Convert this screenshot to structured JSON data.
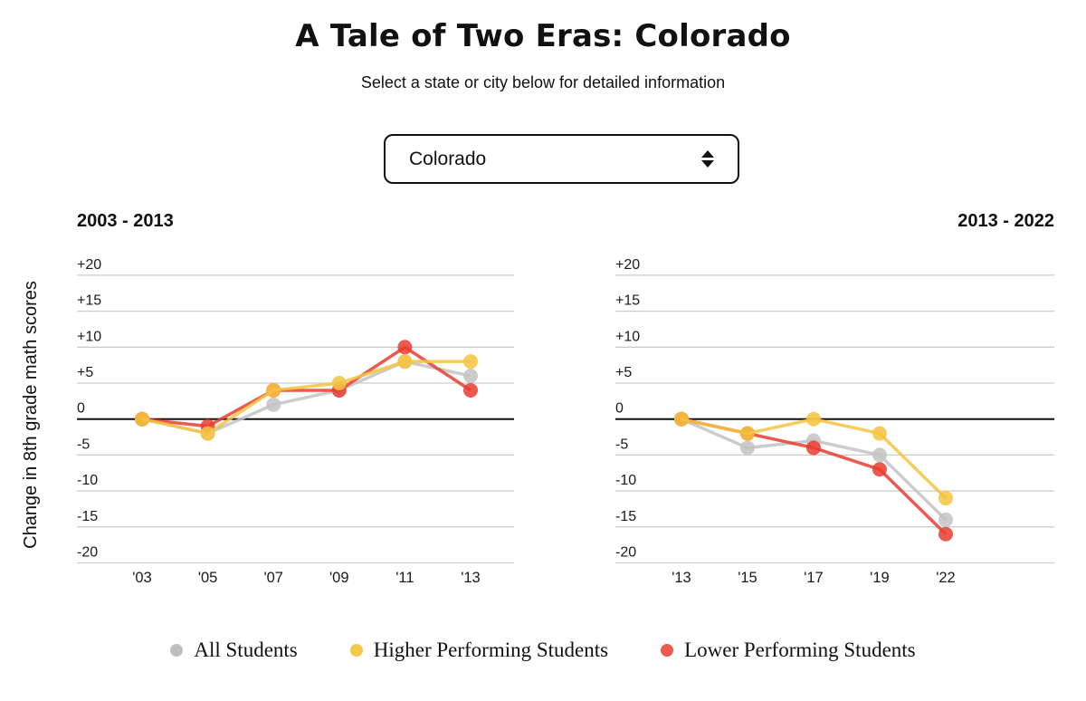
{
  "header": {
    "title": "A Tale of Two Eras: Colorado",
    "subtitle": "Select a state or city below for detailed information"
  },
  "state_select": {
    "value": "Colorado",
    "icon": "up-down-arrows-icon"
  },
  "y_axis_title": "Change in 8th grade math scores",
  "legend": [
    {
      "label": "All Students",
      "color": "#bfbfbf"
    },
    {
      "label": "Higher Performing Students",
      "color": "#f2c94c"
    },
    {
      "label": "Lower Performing Students",
      "color": "#ee5a50"
    }
  ],
  "colors": {
    "all_students": "#c3c3c3",
    "higher_performing": "#f4c43e",
    "lower_performing": "#e93d30",
    "gridline": "#cccccc",
    "zero_line": "#111111"
  },
  "chart_data": [
    {
      "type": "line",
      "title": "2003 - 2013",
      "x": [
        "'03",
        "'05",
        "'07",
        "'09",
        "'11",
        "'13"
      ],
      "series": [
        {
          "name": "All Students",
          "color": "#c3c3c3",
          "values": [
            0,
            -2,
            2,
            4,
            8,
            6
          ]
        },
        {
          "name": "Higher Performing Students",
          "color": "#f4c43e",
          "values": [
            0,
            -2,
            4,
            5,
            8,
            8
          ]
        },
        {
          "name": "Lower Performing Students",
          "color": "#e93d30",
          "values": [
            0,
            -1,
            4,
            4,
            10,
            4
          ]
        }
      ],
      "draw_order": [
        0,
        2,
        1
      ],
      "ylim": [
        -20,
        20
      ],
      "yticks": [
        {
          "v": 20,
          "label": "+20"
        },
        {
          "v": 15,
          "label": "+15"
        },
        {
          "v": 10,
          "label": "+10"
        },
        {
          "v": 5,
          "label": "+5"
        },
        {
          "v": 0,
          "label": "0"
        },
        {
          "v": -5,
          "label": "-5"
        },
        {
          "v": -10,
          "label": "-10"
        },
        {
          "v": -15,
          "label": "-15"
        },
        {
          "v": -20,
          "label": "-20"
        }
      ],
      "grid": true,
      "legend_position": "bottom"
    },
    {
      "type": "line",
      "title": "2013 - 2022",
      "x": [
        "'13",
        "'15",
        "'17",
        "'19",
        "'22"
      ],
      "series": [
        {
          "name": "All Students",
          "color": "#c3c3c3",
          "values": [
            0,
            -4,
            -3,
            -5,
            -14
          ]
        },
        {
          "name": "Higher Performing Students",
          "color": "#f4c43e",
          "values": [
            0,
            -2,
            0,
            -2,
            -11
          ]
        },
        {
          "name": "Lower Performing Students",
          "color": "#e93d30",
          "values": [
            0,
            -2,
            -4,
            -7,
            -16
          ]
        }
      ],
      "draw_order": [
        0,
        2,
        1
      ],
      "ylim": [
        -20,
        20
      ],
      "yticks": [
        {
          "v": 20,
          "label": "+20"
        },
        {
          "v": 15,
          "label": "+15"
        },
        {
          "v": 10,
          "label": "+10"
        },
        {
          "v": 5,
          "label": "+5"
        },
        {
          "v": 0,
          "label": "0"
        },
        {
          "v": -5,
          "label": "-5"
        },
        {
          "v": -10,
          "label": "-10"
        },
        {
          "v": -15,
          "label": "-15"
        },
        {
          "v": -20,
          "label": "-20"
        }
      ],
      "grid": true,
      "legend_position": "bottom"
    }
  ]
}
